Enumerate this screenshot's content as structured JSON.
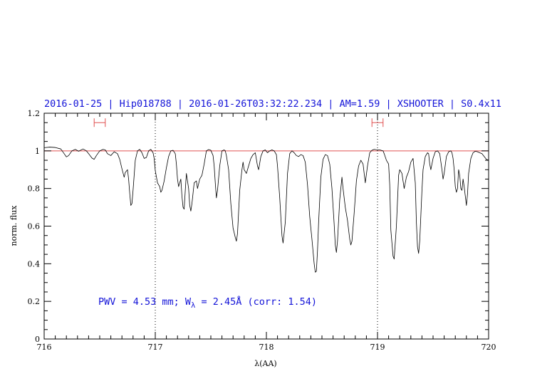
{
  "chart_data": {
    "type": "line",
    "title": "2016-01-25 | Hip018788 | 2016-01-26T03:32:22.234 | AM=1.59 | XSHOOTER | S0.4x11",
    "xlabel": "λ(AA)",
    "ylabel": "norm. flux",
    "xlim": [
      716,
      720
    ],
    "ylim": [
      0,
      1.2
    ],
    "x_ticks": [
      "716",
      "717",
      "718",
      "719",
      "720"
    ],
    "y_ticks": [
      "0",
      "0.2",
      "0.4",
      "0.6",
      "0.8",
      "1",
      "1.2"
    ],
    "annotation": {
      "prefix": "PWV = 4.53 mm; W",
      "subscript": "λ",
      "suffix": " = 2.45Å (corr: 1.54)"
    },
    "reference_line": {
      "y": 1.0,
      "color": "#e05050"
    },
    "vertical_markers": [
      717.0,
      719.0
    ],
    "continuum_windows": [
      {
        "x_start": 716.45,
        "x_end": 716.55,
        "y": 1.15
      },
      {
        "x_start": 718.95,
        "x_end": 719.05,
        "y": 1.15
      }
    ],
    "series": [
      {
        "color": "#000000",
        "points": [
          [
            716.0,
            1.017
          ],
          [
            716.05,
            1.02
          ],
          [
            716.1,
            1.018
          ],
          [
            716.15,
            1.01
          ],
          [
            716.18,
            0.985
          ],
          [
            716.2,
            0.968
          ],
          [
            716.22,
            0.975
          ],
          [
            716.25,
            1.0
          ],
          [
            716.28,
            1.008
          ],
          [
            716.31,
            0.998
          ],
          [
            716.35,
            1.01
          ],
          [
            716.38,
            1.0
          ],
          [
            716.4,
            0.985
          ],
          [
            716.43,
            0.962
          ],
          [
            716.45,
            0.955
          ],
          [
            716.47,
            0.975
          ],
          [
            716.5,
            1.0
          ],
          [
            716.53,
            1.008
          ],
          [
            716.55,
            1.005
          ],
          [
            716.57,
            0.985
          ],
          [
            716.6,
            0.975
          ],
          [
            716.63,
            0.995
          ],
          [
            716.66,
            0.985
          ],
          [
            716.68,
            0.955
          ],
          [
            716.7,
            0.905
          ],
          [
            716.72,
            0.86
          ],
          [
            716.73,
            0.885
          ],
          [
            716.75,
            0.9
          ],
          [
            716.76,
            0.85
          ],
          [
            716.77,
            0.775
          ],
          [
            716.78,
            0.71
          ],
          [
            716.79,
            0.72
          ],
          [
            716.8,
            0.79
          ],
          [
            716.82,
            0.95
          ],
          [
            716.84,
            1.0
          ],
          [
            716.86,
            1.008
          ],
          [
            716.88,
            0.99
          ],
          [
            716.9,
            0.96
          ],
          [
            716.92,
            0.965
          ],
          [
            716.94,
            1.0
          ],
          [
            716.96,
            1.008
          ],
          [
            716.98,
            0.99
          ],
          [
            716.99,
            0.96
          ],
          [
            717.0,
            0.895
          ],
          [
            717.02,
            0.83
          ],
          [
            717.04,
            0.81
          ],
          [
            717.05,
            0.78
          ],
          [
            717.06,
            0.79
          ],
          [
            717.08,
            0.84
          ],
          [
            717.1,
            0.91
          ],
          [
            717.12,
            0.97
          ],
          [
            717.14,
            1.0
          ],
          [
            717.16,
            1.003
          ],
          [
            717.18,
            0.985
          ],
          [
            717.19,
            0.93
          ],
          [
            717.2,
            0.85
          ],
          [
            717.21,
            0.81
          ],
          [
            717.23,
            0.85
          ],
          [
            717.24,
            0.76
          ],
          [
            717.25,
            0.7
          ],
          [
            717.26,
            0.69
          ],
          [
            717.27,
            0.79
          ],
          [
            717.28,
            0.88
          ],
          [
            717.3,
            0.8
          ],
          [
            717.31,
            0.71
          ],
          [
            717.32,
            0.68
          ],
          [
            717.33,
            0.72
          ],
          [
            717.35,
            0.83
          ],
          [
            717.37,
            0.84
          ],
          [
            717.38,
            0.8
          ],
          [
            717.4,
            0.85
          ],
          [
            717.42,
            0.87
          ],
          [
            717.44,
            0.93
          ],
          [
            717.46,
            1.0
          ],
          [
            717.48,
            1.007
          ],
          [
            717.5,
            1.003
          ],
          [
            717.52,
            0.975
          ],
          [
            717.53,
            0.92
          ],
          [
            717.54,
            0.83
          ],
          [
            717.55,
            0.75
          ],
          [
            717.56,
            0.79
          ],
          [
            717.58,
            0.92
          ],
          [
            717.6,
            1.0
          ],
          [
            717.62,
            1.005
          ],
          [
            717.63,
            1.0
          ],
          [
            717.64,
            0.975
          ],
          [
            717.66,
            0.9
          ],
          [
            717.68,
            0.72
          ],
          [
            717.7,
            0.59
          ],
          [
            717.72,
            0.54
          ],
          [
            717.73,
            0.52
          ],
          [
            717.74,
            0.56
          ],
          [
            717.76,
            0.79
          ],
          [
            717.78,
            0.9
          ],
          [
            717.79,
            0.94
          ],
          [
            717.8,
            0.9
          ],
          [
            717.82,
            0.88
          ],
          [
            717.84,
            0.92
          ],
          [
            717.86,
            0.96
          ],
          [
            717.88,
            0.98
          ],
          [
            717.9,
            0.99
          ],
          [
            717.92,
            0.92
          ],
          [
            717.93,
            0.9
          ],
          [
            717.95,
            0.97
          ],
          [
            717.97,
            1.0
          ],
          [
            717.99,
            1.005
          ],
          [
            718.01,
            0.99
          ],
          [
            718.03,
            1.0
          ],
          [
            718.05,
            1.005
          ],
          [
            718.07,
            1.0
          ],
          [
            718.09,
            0.98
          ],
          [
            718.1,
            0.92
          ],
          [
            718.12,
            0.75
          ],
          [
            718.14,
            0.55
          ],
          [
            718.15,
            0.51
          ],
          [
            718.17,
            0.62
          ],
          [
            718.19,
            0.88
          ],
          [
            718.21,
            0.985
          ],
          [
            718.23,
            1.0
          ],
          [
            718.25,
            0.99
          ],
          [
            718.27,
            0.975
          ],
          [
            718.29,
            0.97
          ],
          [
            718.31,
            0.98
          ],
          [
            718.33,
            0.975
          ],
          [
            718.35,
            0.94
          ],
          [
            718.37,
            0.82
          ],
          [
            718.39,
            0.65
          ],
          [
            718.41,
            0.53
          ],
          [
            718.43,
            0.4
          ],
          [
            718.44,
            0.355
          ],
          [
            718.45,
            0.36
          ],
          [
            718.46,
            0.47
          ],
          [
            718.47,
            0.62
          ],
          [
            718.49,
            0.86
          ],
          [
            718.51,
            0.955
          ],
          [
            718.53,
            0.98
          ],
          [
            718.55,
            0.975
          ],
          [
            718.57,
            0.93
          ],
          [
            718.59,
            0.8
          ],
          [
            718.61,
            0.61
          ],
          [
            718.62,
            0.5
          ],
          [
            718.63,
            0.46
          ],
          [
            718.64,
            0.52
          ],
          [
            718.66,
            0.74
          ],
          [
            718.68,
            0.86
          ],
          [
            718.69,
            0.8
          ],
          [
            718.71,
            0.7
          ],
          [
            718.73,
            0.63
          ],
          [
            718.75,
            0.53
          ],
          [
            718.76,
            0.5
          ],
          [
            718.77,
            0.52
          ],
          [
            718.79,
            0.67
          ],
          [
            718.81,
            0.84
          ],
          [
            718.83,
            0.92
          ],
          [
            718.85,
            0.95
          ],
          [
            718.87,
            0.93
          ],
          [
            718.88,
            0.88
          ],
          [
            718.89,
            0.83
          ],
          [
            718.91,
            0.92
          ],
          [
            718.93,
            0.99
          ],
          [
            718.95,
            1.003
          ],
          [
            718.97,
            1.008
          ],
          [
            718.99,
            1.006
          ],
          [
            719.02,
            1.005
          ],
          [
            719.05,
            1.0
          ],
          [
            719.06,
            0.985
          ],
          [
            719.08,
            0.95
          ],
          [
            719.09,
            0.94
          ],
          [
            719.1,
            0.93
          ],
          [
            719.11,
            0.82
          ],
          [
            719.12,
            0.58
          ],
          [
            719.14,
            0.44
          ],
          [
            719.15,
            0.425
          ],
          [
            719.17,
            0.6
          ],
          [
            719.19,
            0.87
          ],
          [
            719.2,
            0.9
          ],
          [
            719.22,
            0.88
          ],
          [
            719.24,
            0.8
          ],
          [
            719.26,
            0.86
          ],
          [
            719.28,
            0.89
          ],
          [
            719.3,
            0.94
          ],
          [
            719.32,
            0.96
          ],
          [
            719.34,
            0.83
          ],
          [
            719.35,
            0.62
          ],
          [
            719.36,
            0.49
          ],
          [
            719.37,
            0.455
          ],
          [
            719.38,
            0.52
          ],
          [
            719.4,
            0.79
          ],
          [
            719.41,
            0.9
          ],
          [
            719.43,
            0.97
          ],
          [
            719.45,
            0.99
          ],
          [
            719.46,
            0.985
          ],
          [
            719.47,
            0.93
          ],
          [
            719.48,
            0.9
          ],
          [
            719.5,
            0.96
          ],
          [
            719.52,
            0.995
          ],
          [
            719.54,
            1.0
          ],
          [
            719.56,
            0.985
          ],
          [
            719.58,
            0.9
          ],
          [
            719.59,
            0.85
          ],
          [
            719.6,
            0.88
          ],
          [
            719.62,
            0.97
          ],
          [
            719.64,
            0.995
          ],
          [
            719.66,
            1.0
          ],
          [
            719.67,
            0.99
          ],
          [
            719.68,
            0.96
          ],
          [
            719.69,
            0.9
          ],
          [
            719.7,
            0.81
          ],
          [
            719.71,
            0.78
          ],
          [
            719.72,
            0.8
          ],
          [
            719.73,
            0.9
          ],
          [
            719.74,
            0.87
          ],
          [
            719.75,
            0.8
          ],
          [
            719.76,
            0.79
          ],
          [
            719.77,
            0.85
          ],
          [
            719.78,
            0.81
          ],
          [
            719.79,
            0.76
          ],
          [
            719.8,
            0.71
          ],
          [
            719.81,
            0.77
          ],
          [
            719.82,
            0.88
          ],
          [
            719.84,
            0.96
          ],
          [
            719.86,
            0.99
          ],
          [
            719.88,
            0.998
          ],
          [
            719.9,
            0.995
          ],
          [
            719.92,
            0.99
          ],
          [
            719.94,
            0.985
          ],
          [
            719.96,
            0.97
          ],
          [
            719.98,
            0.955
          ],
          [
            720.0,
            0.95
          ]
        ]
      }
    ]
  }
}
